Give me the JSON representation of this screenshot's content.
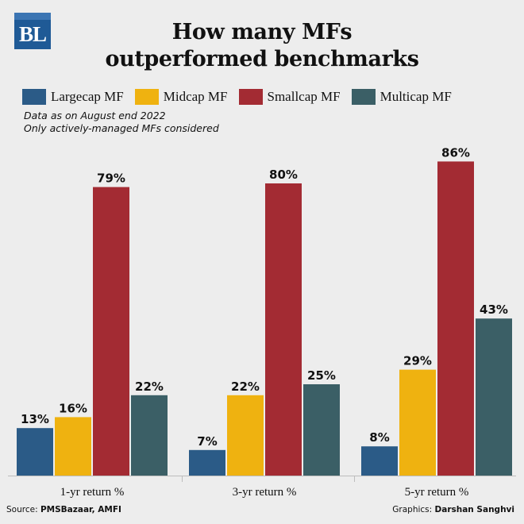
{
  "logo": {
    "text": "BL"
  },
  "title_lines": [
    "How many MFs",
    "outperformed benchmarks"
  ],
  "notes": [
    "Data as on August end 2022",
    "Only actively-managed MFs considered"
  ],
  "footer": {
    "source_label": "Source: ",
    "source_value": "PMSBazaar, AMFI",
    "credit_label": "Graphics: ",
    "credit_value": "Darshan Sanghvi"
  },
  "chart_data": {
    "type": "bar",
    "title": "How many MFs outperformed benchmarks",
    "categories": [
      "1-yr return %",
      "3-yr return %",
      "5-yr return %"
    ],
    "series": [
      {
        "name": "Largecap MF",
        "color": "#2b5b87",
        "values": [
          13,
          7,
          8
        ]
      },
      {
        "name": "Midcap MF",
        "color": "#efb210",
        "values": [
          16,
          22,
          29
        ]
      },
      {
        "name": "Smallcap MF",
        "color": "#a32b33",
        "values": [
          79,
          80,
          86
        ]
      },
      {
        "name": "Multicap MF",
        "color": "#3b5f66",
        "values": [
          22,
          25,
          43
        ]
      }
    ],
    "value_suffix": "%",
    "ylim": [
      0,
      100
    ],
    "legend": "top",
    "grid": false
  }
}
